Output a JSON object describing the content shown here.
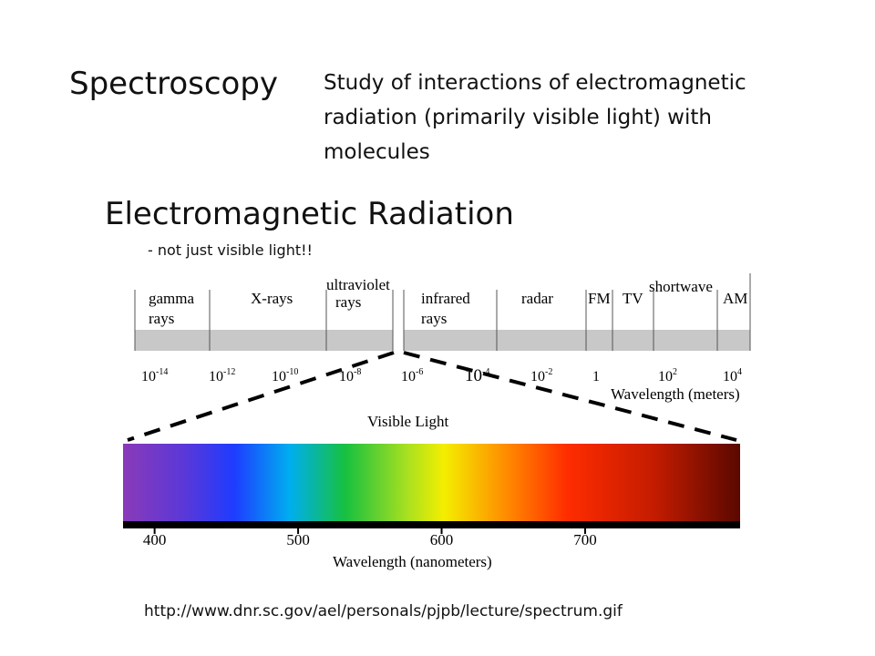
{
  "slide": {
    "title": "Spectroscopy",
    "description": [
      "Study of interactions of electromagnetic",
      "radiation (primarily visible light)  with",
      "molecules"
    ],
    "subtitle": "Electromagnetic Radiation",
    "note": "- not just visible light!!",
    "source": "http://www.dnr.sc.gov/ael/personals/pjpb/lecture/spectrum.gif"
  },
  "spectrum": {
    "bands": [
      {
        "lines": [
          "gamma",
          "rays"
        ]
      },
      {
        "lines": [
          "X-rays"
        ]
      },
      {
        "lines": [
          "ultraviolet",
          "rays"
        ]
      },
      {
        "lines": [
          "infrared",
          "rays"
        ]
      },
      {
        "lines": [
          "radar"
        ]
      },
      {
        "lines": [
          "FM"
        ]
      },
      {
        "lines": [
          "TV"
        ]
      },
      {
        "lines": [
          "shortwave"
        ]
      },
      {
        "lines": [
          "AM"
        ]
      }
    ],
    "wavelength_labels": [
      {
        "base": "10",
        "exp": "-14"
      },
      {
        "base": "10",
        "exp": "-12"
      },
      {
        "base": "10",
        "exp": "-10"
      },
      {
        "base": "10",
        "exp": "-8"
      },
      {
        "base": "10",
        "exp": "-6"
      },
      {
        "base": "10",
        "exp": "-4"
      },
      {
        "base": "10",
        "exp": "-2"
      },
      {
        "base": "1"
      },
      {
        "base": "10",
        "exp": "2"
      },
      {
        "base": "10",
        "exp": "4"
      }
    ],
    "axis_title": "Wavelength (meters)",
    "visible_title": "Visible Light",
    "visible_xlim": [
      378,
      808
    ],
    "visible_xticks": [
      400,
      500,
      600,
      700
    ],
    "visible_axis_title": "Wavelength (nanometers)"
  }
}
